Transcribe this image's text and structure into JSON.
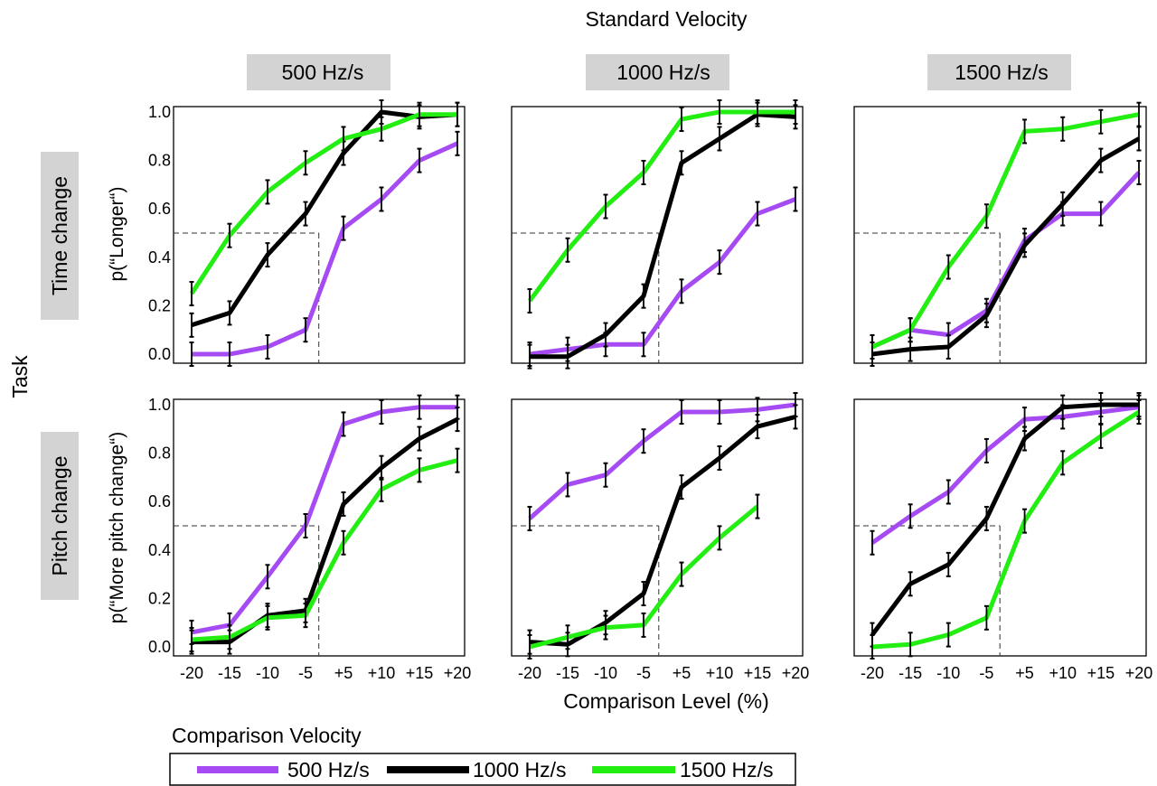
{
  "figure": {
    "column_header": "Standard Velocity",
    "row_header": "Task",
    "x_axis_label": "Comparison Level (%)",
    "legend_title": "Comparison Velocity"
  },
  "colors": {
    "500 Hz/s": "#a64bf4",
    "1000 Hz/s": "#000000",
    "1500 Hz/s": "#22ee11",
    "label_box": "#d3d3d3"
  },
  "chart_data": {
    "type": "line",
    "columns": [
      "500 Hz/s",
      "1000 Hz/s",
      "1500 Hz/s"
    ],
    "rows": [
      {
        "label": "Time change",
        "ylabel": "p(“Longer“)"
      },
      {
        "label": "Pitch change",
        "ylabel": "p(“More pitch change“)"
      }
    ],
    "x": [
      "-20",
      "-15",
      "-10",
      "-5",
      "+5",
      "+10",
      "+15",
      "+20"
    ],
    "yticks": [
      "0.0",
      "0.2",
      "0.4",
      "0.6",
      "0.8",
      "1.0"
    ],
    "ylim": [
      0,
      1
    ],
    "threshold": 0.5,
    "legend": [
      "500 Hz/s",
      "1000 Hz/s",
      "1500 Hz/s"
    ],
    "grid": false,
    "panels": [
      {
        "row": "Time change",
        "column": "500 Hz/s",
        "threshold_x": 0.35,
        "series": [
          {
            "name": "500 Hz/s",
            "values": [
              0.0,
              0.0,
              0.03,
              0.1,
              0.52,
              0.64,
              0.8,
              0.87
            ]
          },
          {
            "name": "1000 Hz/s",
            "values": [
              0.12,
              0.17,
              0.41,
              0.58,
              0.83,
              1.0,
              0.98,
              0.99
            ]
          },
          {
            "name": "1500 Hz/s",
            "values": [
              0.25,
              0.49,
              0.67,
              0.79,
              0.89,
              0.93,
              0.99,
              0.99
            ]
          }
        ]
      },
      {
        "row": "Time change",
        "column": "1000 Hz/s",
        "threshold_x": 0.4,
        "series": [
          {
            "name": "500 Hz/s",
            "values": [
              0.0,
              0.02,
              0.04,
              0.04,
              0.26,
              0.38,
              0.58,
              0.64
            ]
          },
          {
            "name": "1000 Hz/s",
            "values": [
              -0.01,
              -0.01,
              0.08,
              0.24,
              0.79,
              0.89,
              0.99,
              0.98
            ]
          },
          {
            "name": "1500 Hz/s",
            "values": [
              0.22,
              0.43,
              0.61,
              0.75,
              0.97,
              1.0,
              1.0,
              1.0
            ]
          }
        ]
      },
      {
        "row": "Time change",
        "column": "1500 Hz/s",
        "threshold_x": 0.35,
        "series": [
          {
            "name": "500 Hz/s",
            "values": [
              0.03,
              0.1,
              0.08,
              0.18,
              0.47,
              0.58,
              0.58,
              0.75
            ]
          },
          {
            "name": "1000 Hz/s",
            "values": [
              0.0,
              0.02,
              0.03,
              0.16,
              0.45,
              0.62,
              0.8,
              0.89
            ]
          },
          {
            "name": "1500 Hz/s",
            "values": [
              0.03,
              0.1,
              0.36,
              0.57,
              0.92,
              0.93,
              0.96,
              0.99
            ]
          }
        ]
      },
      {
        "row": "Pitch change",
        "column": "500 Hz/s",
        "threshold_x": 0.35,
        "series": [
          {
            "name": "500 Hz/s",
            "values": [
              0.06,
              0.09,
              0.29,
              0.5,
              0.92,
              0.97,
              0.99,
              0.99
            ]
          },
          {
            "name": "1000 Hz/s",
            "values": [
              0.02,
              0.02,
              0.13,
              0.15,
              0.59,
              0.74,
              0.86,
              0.94
            ]
          },
          {
            "name": "1500 Hz/s",
            "values": [
              0.03,
              0.04,
              0.12,
              0.13,
              0.43,
              0.65,
              0.73,
              0.77
            ]
          }
        ]
      },
      {
        "row": "Pitch change",
        "column": "1000 Hz/s",
        "threshold_x": 0.4,
        "series": [
          {
            "name": "500 Hz/s",
            "values": [
              0.53,
              0.67,
              0.71,
              0.85,
              0.97,
              0.97,
              0.98,
              1.0
            ]
          },
          {
            "name": "1000 Hz/s",
            "values": [
              0.02,
              0.01,
              0.1,
              0.22,
              0.66,
              0.78,
              0.91,
              0.95
            ]
          },
          {
            "name": "1500 Hz/s",
            "values": [
              0.0,
              0.04,
              0.08,
              0.09,
              0.3,
              0.45,
              0.58,
              null
            ]
          }
        ]
      },
      {
        "row": "Pitch change",
        "column": "1500 Hz/s",
        "threshold_x": 0.35,
        "series": [
          {
            "name": "500 Hz/s",
            "values": [
              0.43,
              0.54,
              0.64,
              0.81,
              0.94,
              0.95,
              0.97,
              0.99
            ]
          },
          {
            "name": "1000 Hz/s",
            "values": [
              0.05,
              0.26,
              0.34,
              0.53,
              0.86,
              0.99,
              1.0,
              1.0
            ]
          },
          {
            "name": "1500 Hz/s",
            "values": [
              0.0,
              0.01,
              0.05,
              0.12,
              0.52,
              0.76,
              0.87,
              0.97
            ]
          }
        ]
      }
    ]
  }
}
